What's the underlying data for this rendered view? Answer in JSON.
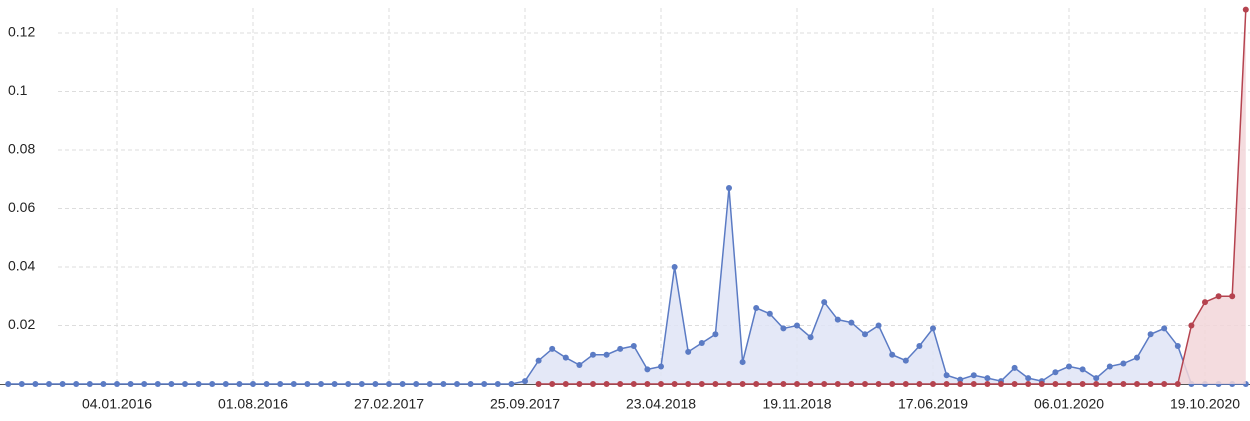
{
  "chart_data": {
    "type": "area",
    "categories": [
      null,
      null,
      null,
      null,
      null,
      null,
      null,
      null,
      "04.01.2016",
      null,
      null,
      null,
      null,
      null,
      null,
      null,
      null,
      null,
      "01.08.2016",
      null,
      null,
      null,
      null,
      null,
      null,
      null,
      null,
      null,
      "27.02.2017",
      null,
      null,
      null,
      null,
      null,
      null,
      null,
      null,
      null,
      "25.09.2017",
      null,
      null,
      null,
      null,
      null,
      null,
      null,
      null,
      null,
      "23.04.2018",
      null,
      null,
      null,
      null,
      null,
      null,
      null,
      null,
      null,
      "19.11.2018",
      null,
      null,
      null,
      null,
      null,
      null,
      null,
      null,
      null,
      "17.06.2019",
      null,
      null,
      null,
      null,
      null,
      null,
      null,
      null,
      null,
      "06.01.2020",
      null,
      null,
      null,
      null,
      null,
      null,
      null,
      null,
      null,
      "19.10.2020",
      null,
      null,
      null
    ],
    "series": [
      {
        "color": "#5b7bc4",
        "fill": "#dfe4f6",
        "values": [
          0,
          0,
          0,
          0,
          0,
          0,
          0,
          0,
          0,
          0,
          0,
          0,
          0,
          0,
          0,
          0,
          0,
          0,
          0,
          0,
          0,
          0,
          0,
          0,
          0,
          0,
          0,
          0,
          0,
          0,
          0,
          0,
          0,
          0,
          0,
          0,
          0,
          0,
          0.001,
          0.008,
          0.012,
          0.009,
          0.0065,
          0.01,
          0.01,
          0.012,
          0.013,
          0.005,
          0.006,
          0.04,
          0.011,
          0.014,
          0.017,
          0.067,
          0.0075,
          0.026,
          0.024,
          0.019,
          0.02,
          0.016,
          0.028,
          0.022,
          0.021,
          0.017,
          0.02,
          0.01,
          0.008,
          0.013,
          0.019,
          0.003,
          0.0015,
          0.003,
          0.002,
          0.001,
          0.0055,
          0.002,
          0.001,
          0.004,
          0.006,
          0.005,
          0.002,
          0.006,
          0.007,
          0.009,
          0.017,
          0.019,
          0.013,
          0,
          0,
          0,
          0,
          0
        ]
      },
      {
        "color": "#b5434f",
        "fill": "#f2d6d9",
        "values": [
          null,
          null,
          null,
          null,
          null,
          null,
          null,
          null,
          null,
          null,
          null,
          null,
          null,
          null,
          null,
          null,
          null,
          null,
          null,
          null,
          null,
          null,
          null,
          null,
          null,
          null,
          null,
          null,
          null,
          null,
          null,
          null,
          null,
          null,
          null,
          null,
          null,
          null,
          null,
          0,
          0,
          0,
          0,
          0,
          0,
          0,
          0,
          0,
          0,
          0,
          0,
          0,
          0,
          0,
          0,
          0,
          0,
          0,
          0,
          0,
          0,
          0,
          0,
          0,
          0,
          0,
          0,
          0,
          0,
          0,
          0,
          0,
          0,
          0,
          0,
          0,
          0,
          0,
          0,
          0,
          0,
          0,
          0,
          0,
          0,
          0,
          0,
          0.02,
          0.028,
          0.03,
          0.03,
          0.128
        ]
      }
    ],
    "ylim": [
      0,
      0.13
    ],
    "yticks": [
      0.02,
      0.04,
      0.06,
      0.08,
      0.1,
      0.12
    ],
    "grid": true
  }
}
